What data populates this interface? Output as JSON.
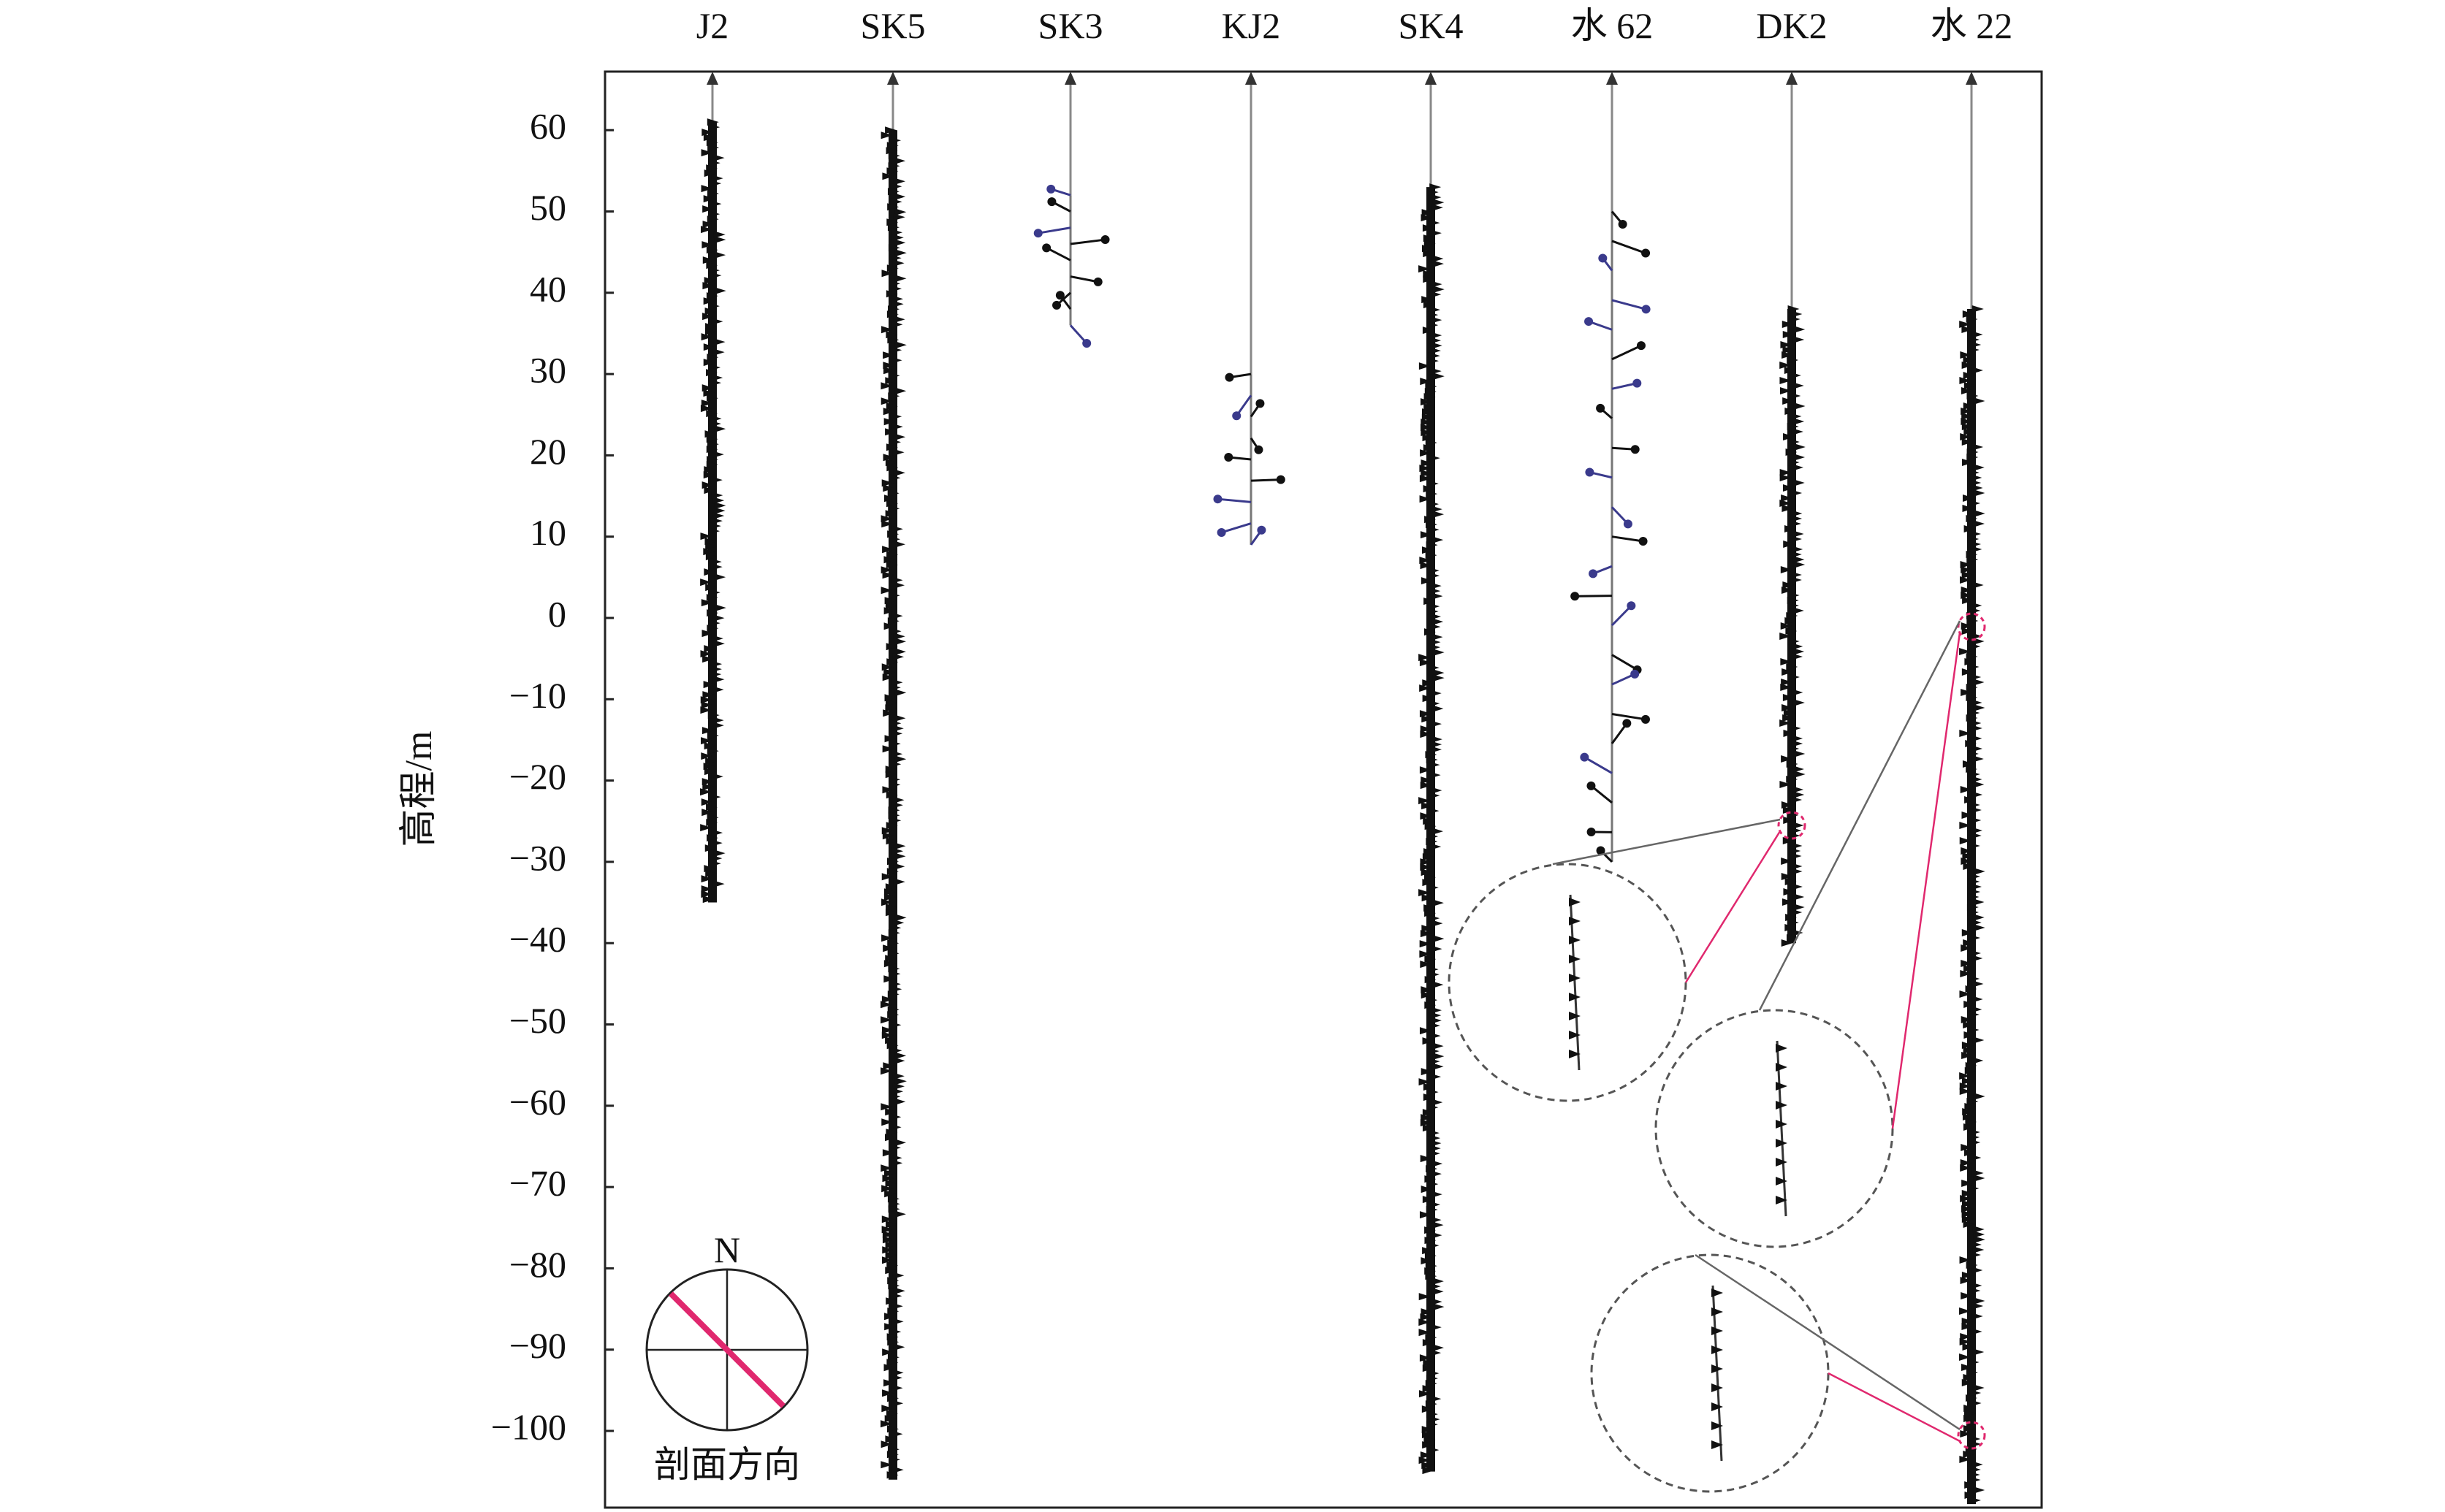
{
  "chart_data": {
    "type": "scatter",
    "title": "",
    "ylabel": "高程/m",
    "ylim": [
      -107,
      67
    ],
    "yticks": [
      60,
      50,
      40,
      30,
      20,
      10,
      0,
      -10,
      -20,
      -30,
      -40,
      -50,
      -60,
      -70,
      -80,
      -90,
      -100
    ],
    "ytick_labels": [
      "60",
      "50",
      "40",
      "30",
      "20",
      "10",
      "0",
      "−10",
      "−20",
      "−30",
      "−40",
      "−50",
      "−60",
      "−70",
      "−80",
      "−90",
      "−100"
    ],
    "categories": [
      "J2",
      "SK5",
      "SK3",
      "KJ2",
      "SK4",
      "水 62",
      "DK2",
      "水 22"
    ],
    "boreholes": [
      {
        "name": "J2",
        "top": 61,
        "bottom": -35,
        "style": "dense"
      },
      {
        "name": "SK5",
        "top": 60,
        "bottom": -106,
        "style": "dense"
      },
      {
        "name": "SK3",
        "top": 52,
        "bottom": 36,
        "style": "sparse"
      },
      {
        "name": "KJ2",
        "top": 30,
        "bottom": 9,
        "style": "sparse"
      },
      {
        "name": "SK4",
        "top": 53,
        "bottom": -105,
        "style": "dense"
      },
      {
        "name": "水 62",
        "top": 50,
        "bottom": -30,
        "style": "sparse"
      },
      {
        "name": "DK2",
        "top": 38,
        "bottom": -40,
        "style": "dense"
      },
      {
        "name": "水 22",
        "top": 38,
        "bottom": -109,
        "style": "dense"
      }
    ],
    "grid": false,
    "compass": {
      "north_label": "N",
      "caption": "剖面方向",
      "section_line_color": "#e0286e"
    },
    "inset_border_color": "#e0286e",
    "mark_color": "#111111",
    "arrow_color_secondary": "#3a3a8c"
  }
}
